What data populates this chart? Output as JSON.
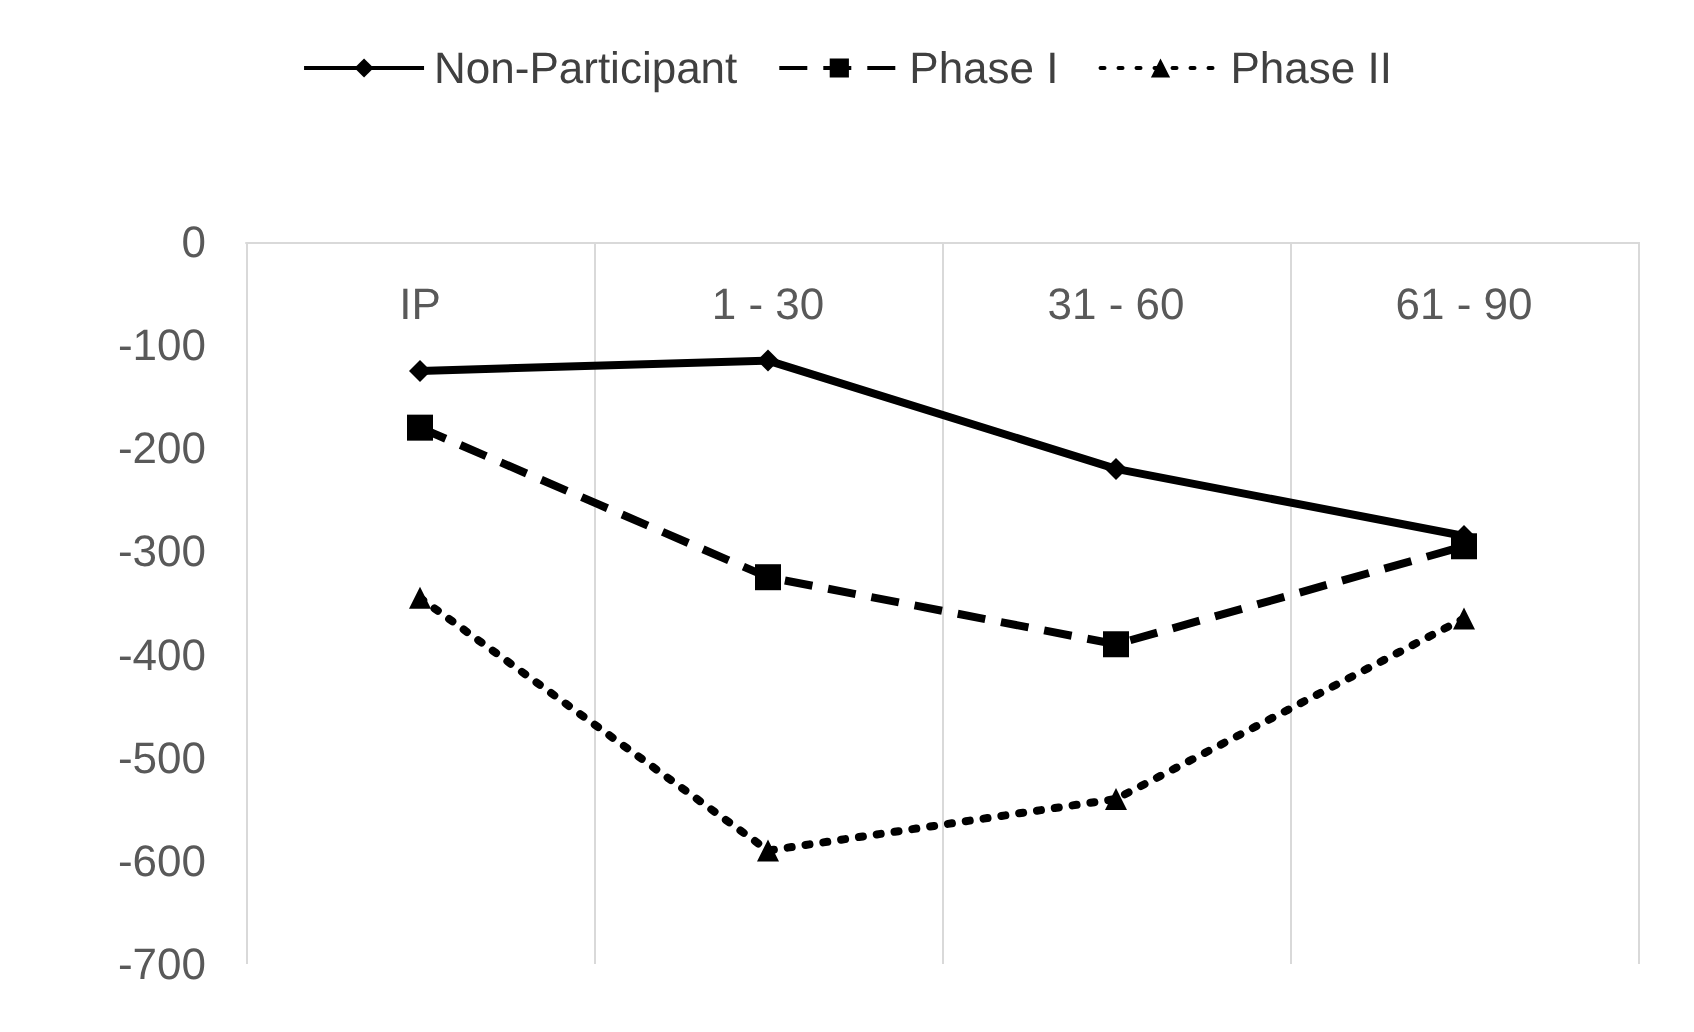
{
  "chart_data": {
    "type": "line",
    "categories": [
      "IP",
      "1 - 30",
      "31 - 60",
      "61 - 90"
    ],
    "series": [
      {
        "name": "Non-Participant",
        "color": "#000000",
        "marker": "diamond",
        "line_style": "solid",
        "values": [
          -125,
          -115,
          -220,
          -285
        ]
      },
      {
        "name": "Phase I",
        "color": "#000000",
        "marker": "square",
        "line_style": "dashed",
        "values": [
          -180,
          -325,
          -390,
          -295
        ]
      },
      {
        "name": "Phase II",
        "color": "#000000",
        "marker": "triangle",
        "line_style": "dotted",
        "values": [
          -345,
          -590,
          -540,
          -365
        ]
      }
    ],
    "ylim": [
      -700,
      0
    ],
    "yticks": [
      0,
      -100,
      -200,
      -300,
      -400,
      -500,
      -600,
      -700
    ],
    "grid": "x",
    "legend": "top"
  }
}
